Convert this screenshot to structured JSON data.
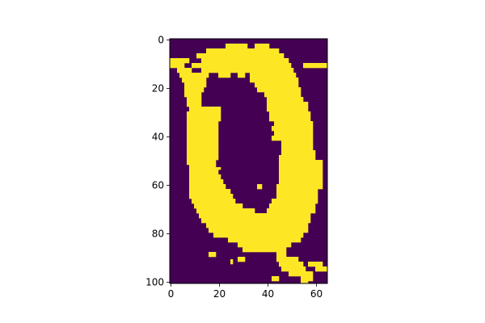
{
  "chart_data": {
    "type": "heatmap",
    "title": "",
    "xlabel": "",
    "ylabel": "",
    "n_rows": 101,
    "n_cols": 65,
    "xlim": [
      0,
      65
    ],
    "ylim": [
      101,
      0
    ],
    "x_ticks": [
      "0",
      "20",
      "40",
      "60"
    ],
    "y_ticks": [
      "0",
      "20",
      "40",
      "60",
      "80",
      "100"
    ],
    "x_tick_values": [
      0,
      20,
      40,
      60
    ],
    "y_tick_values": [
      0,
      20,
      40,
      60,
      80,
      100
    ],
    "colormap": "viridis",
    "colors": {
      "low": "#440154",
      "high": "#fde725"
    },
    "values_description_key": "ones_cells_as_row_runs",
    "ones_cells_as_row_runs": [
      [
        0,
        []
      ],
      [
        2,
        [
          [
            23,
            31
          ],
          [
            35,
            40
          ]
        ]
      ],
      [
        4,
        [
          [
            15,
            44
          ]
        ]
      ],
      [
        6,
        [
          [
            11,
            46
          ]
        ]
      ],
      [
        8,
        [
          [
            0,
            7
          ],
          [
            13,
            48
          ]
        ]
      ],
      [
        10,
        [
          [
            0,
            5
          ],
          [
            9,
            49
          ],
          [
            55,
            64
          ]
        ]
      ],
      [
        12,
        [
          [
            3,
            8
          ],
          [
            13,
            50
          ]
        ]
      ],
      [
        14,
        [
          [
            4,
            15
          ],
          [
            20,
            24
          ],
          [
            28,
            30
          ],
          [
            33,
            51
          ]
        ]
      ],
      [
        16,
        [
          [
            5,
            14
          ],
          [
            33,
            52
          ]
        ]
      ],
      [
        18,
        [
          [
            6,
            14
          ],
          [
            35,
            52
          ]
        ]
      ],
      [
        20,
        [
          [
            6,
            13
          ],
          [
            36,
            53
          ]
        ]
      ],
      [
        22,
        [
          [
            6,
            12
          ],
          [
            39,
            53
          ]
        ]
      ],
      [
        24,
        [
          [
            7,
            12
          ],
          [
            40,
            54
          ]
        ]
      ],
      [
        26,
        [
          [
            7,
            12
          ],
          [
            40,
            56
          ]
        ]
      ],
      [
        28,
        [
          [
            8,
            20
          ],
          [
            40,
            56
          ]
        ]
      ],
      [
        30,
        [
          [
            7,
            20
          ],
          [
            41,
            57
          ]
        ]
      ],
      [
        32,
        [
          [
            7,
            20
          ],
          [
            41,
            57
          ]
        ]
      ],
      [
        34,
        [
          [
            7,
            19
          ],
          [
            43,
            58
          ]
        ]
      ],
      [
        36,
        [
          [
            7,
            19
          ],
          [
            42,
            58
          ]
        ]
      ],
      [
        38,
        [
          [
            7,
            19
          ],
          [
            43,
            58
          ]
        ]
      ],
      [
        40,
        [
          [
            7,
            19
          ],
          [
            42,
            58
          ]
        ]
      ],
      [
        42,
        [
          [
            7,
            19
          ],
          [
            46,
            58
          ]
        ]
      ],
      [
        44,
        [
          [
            7,
            19
          ],
          [
            46,
            58
          ]
        ]
      ],
      [
        46,
        [
          [
            7,
            19
          ],
          [
            46,
            59
          ]
        ]
      ],
      [
        48,
        [
          [
            7,
            19
          ],
          [
            45,
            59
          ]
        ]
      ],
      [
        50,
        [
          [
            7,
            18
          ],
          [
            45,
            62
          ]
        ]
      ],
      [
        52,
        [
          [
            8,
            18
          ],
          [
            45,
            62
          ]
        ]
      ],
      [
        54,
        [
          [
            8,
            19
          ],
          [
            45,
            62
          ]
        ]
      ],
      [
        56,
        [
          [
            8,
            20
          ],
          [
            45,
            62
          ]
        ]
      ],
      [
        58,
        [
          [
            8,
            21
          ],
          [
            45,
            62
          ]
        ]
      ],
      [
        60,
        [
          [
            8,
            22
          ],
          [
            44,
            62
          ]
        ]
      ],
      [
        62,
        [
          [
            8,
            24
          ],
          [
            44,
            60
          ]
        ]
      ],
      [
        64,
        [
          [
            8,
            25
          ],
          [
            44,
            60
          ]
        ]
      ],
      [
        66,
        [
          [
            9,
            26
          ],
          [
            42,
            60
          ]
        ]
      ],
      [
        68,
        [
          [
            10,
            29
          ],
          [
            41,
            59
          ]
        ]
      ],
      [
        70,
        [
          [
            11,
            34
          ],
          [
            40,
            59
          ]
        ]
      ],
      [
        72,
        [
          [
            12,
            40
          ],
          [
            39,
            57
          ]
        ]
      ],
      [
        74,
        [
          [
            13,
            57
          ]
        ]
      ],
      [
        76,
        [
          [
            15,
            56
          ]
        ]
      ],
      [
        78,
        [
          [
            16,
            56
          ]
        ]
      ],
      [
        80,
        [
          [
            18,
            54
          ]
        ]
      ],
      [
        82,
        [
          [
            24,
            53
          ]
        ]
      ],
      [
        84,
        [
          [
            28,
            49
          ]
        ]
      ],
      [
        86,
        [
          [
            30,
            47
          ]
        ]
      ],
      [
        88,
        [
          [
            16,
            18
          ],
          [
            44,
            47
          ]
        ]
      ],
      [
        90,
        [
          [
            28,
            30
          ],
          [
            44,
            52
          ]
        ]
      ],
      [
        92,
        [
          [
            45,
            54
          ],
          [
            57,
            62
          ]
        ]
      ],
      [
        94,
        [
          [
            46,
            55
          ],
          [
            60,
            64
          ]
        ]
      ],
      [
        96,
        [
          [
            49,
            58
          ]
        ]
      ],
      [
        98,
        [
          [
            42,
            44
          ],
          [
            54,
            58
          ]
        ]
      ],
      [
        100,
        [
          [
            54,
            56
          ]
        ]
      ]
    ],
    "extra_cells": [
      [
        28,
        9
      ],
      [
        29,
        9
      ],
      [
        28,
        10
      ],
      [
        29,
        10
      ],
      [
        53,
        10
      ],
      [
        53,
        11
      ],
      [
        53,
        19
      ],
      [
        53,
        20
      ],
      [
        60,
        36
      ],
      [
        61,
        36
      ],
      [
        60,
        37
      ],
      [
        61,
        37
      ],
      [
        35,
        48
      ],
      [
        36,
        48
      ],
      [
        37,
        48
      ],
      [
        35,
        49
      ],
      [
        36,
        49
      ],
      [
        37,
        49
      ],
      [
        54,
        61
      ],
      [
        55,
        61
      ],
      [
        56,
        61
      ],
      [
        91,
        25
      ],
      [
        92,
        25
      ]
    ]
  }
}
